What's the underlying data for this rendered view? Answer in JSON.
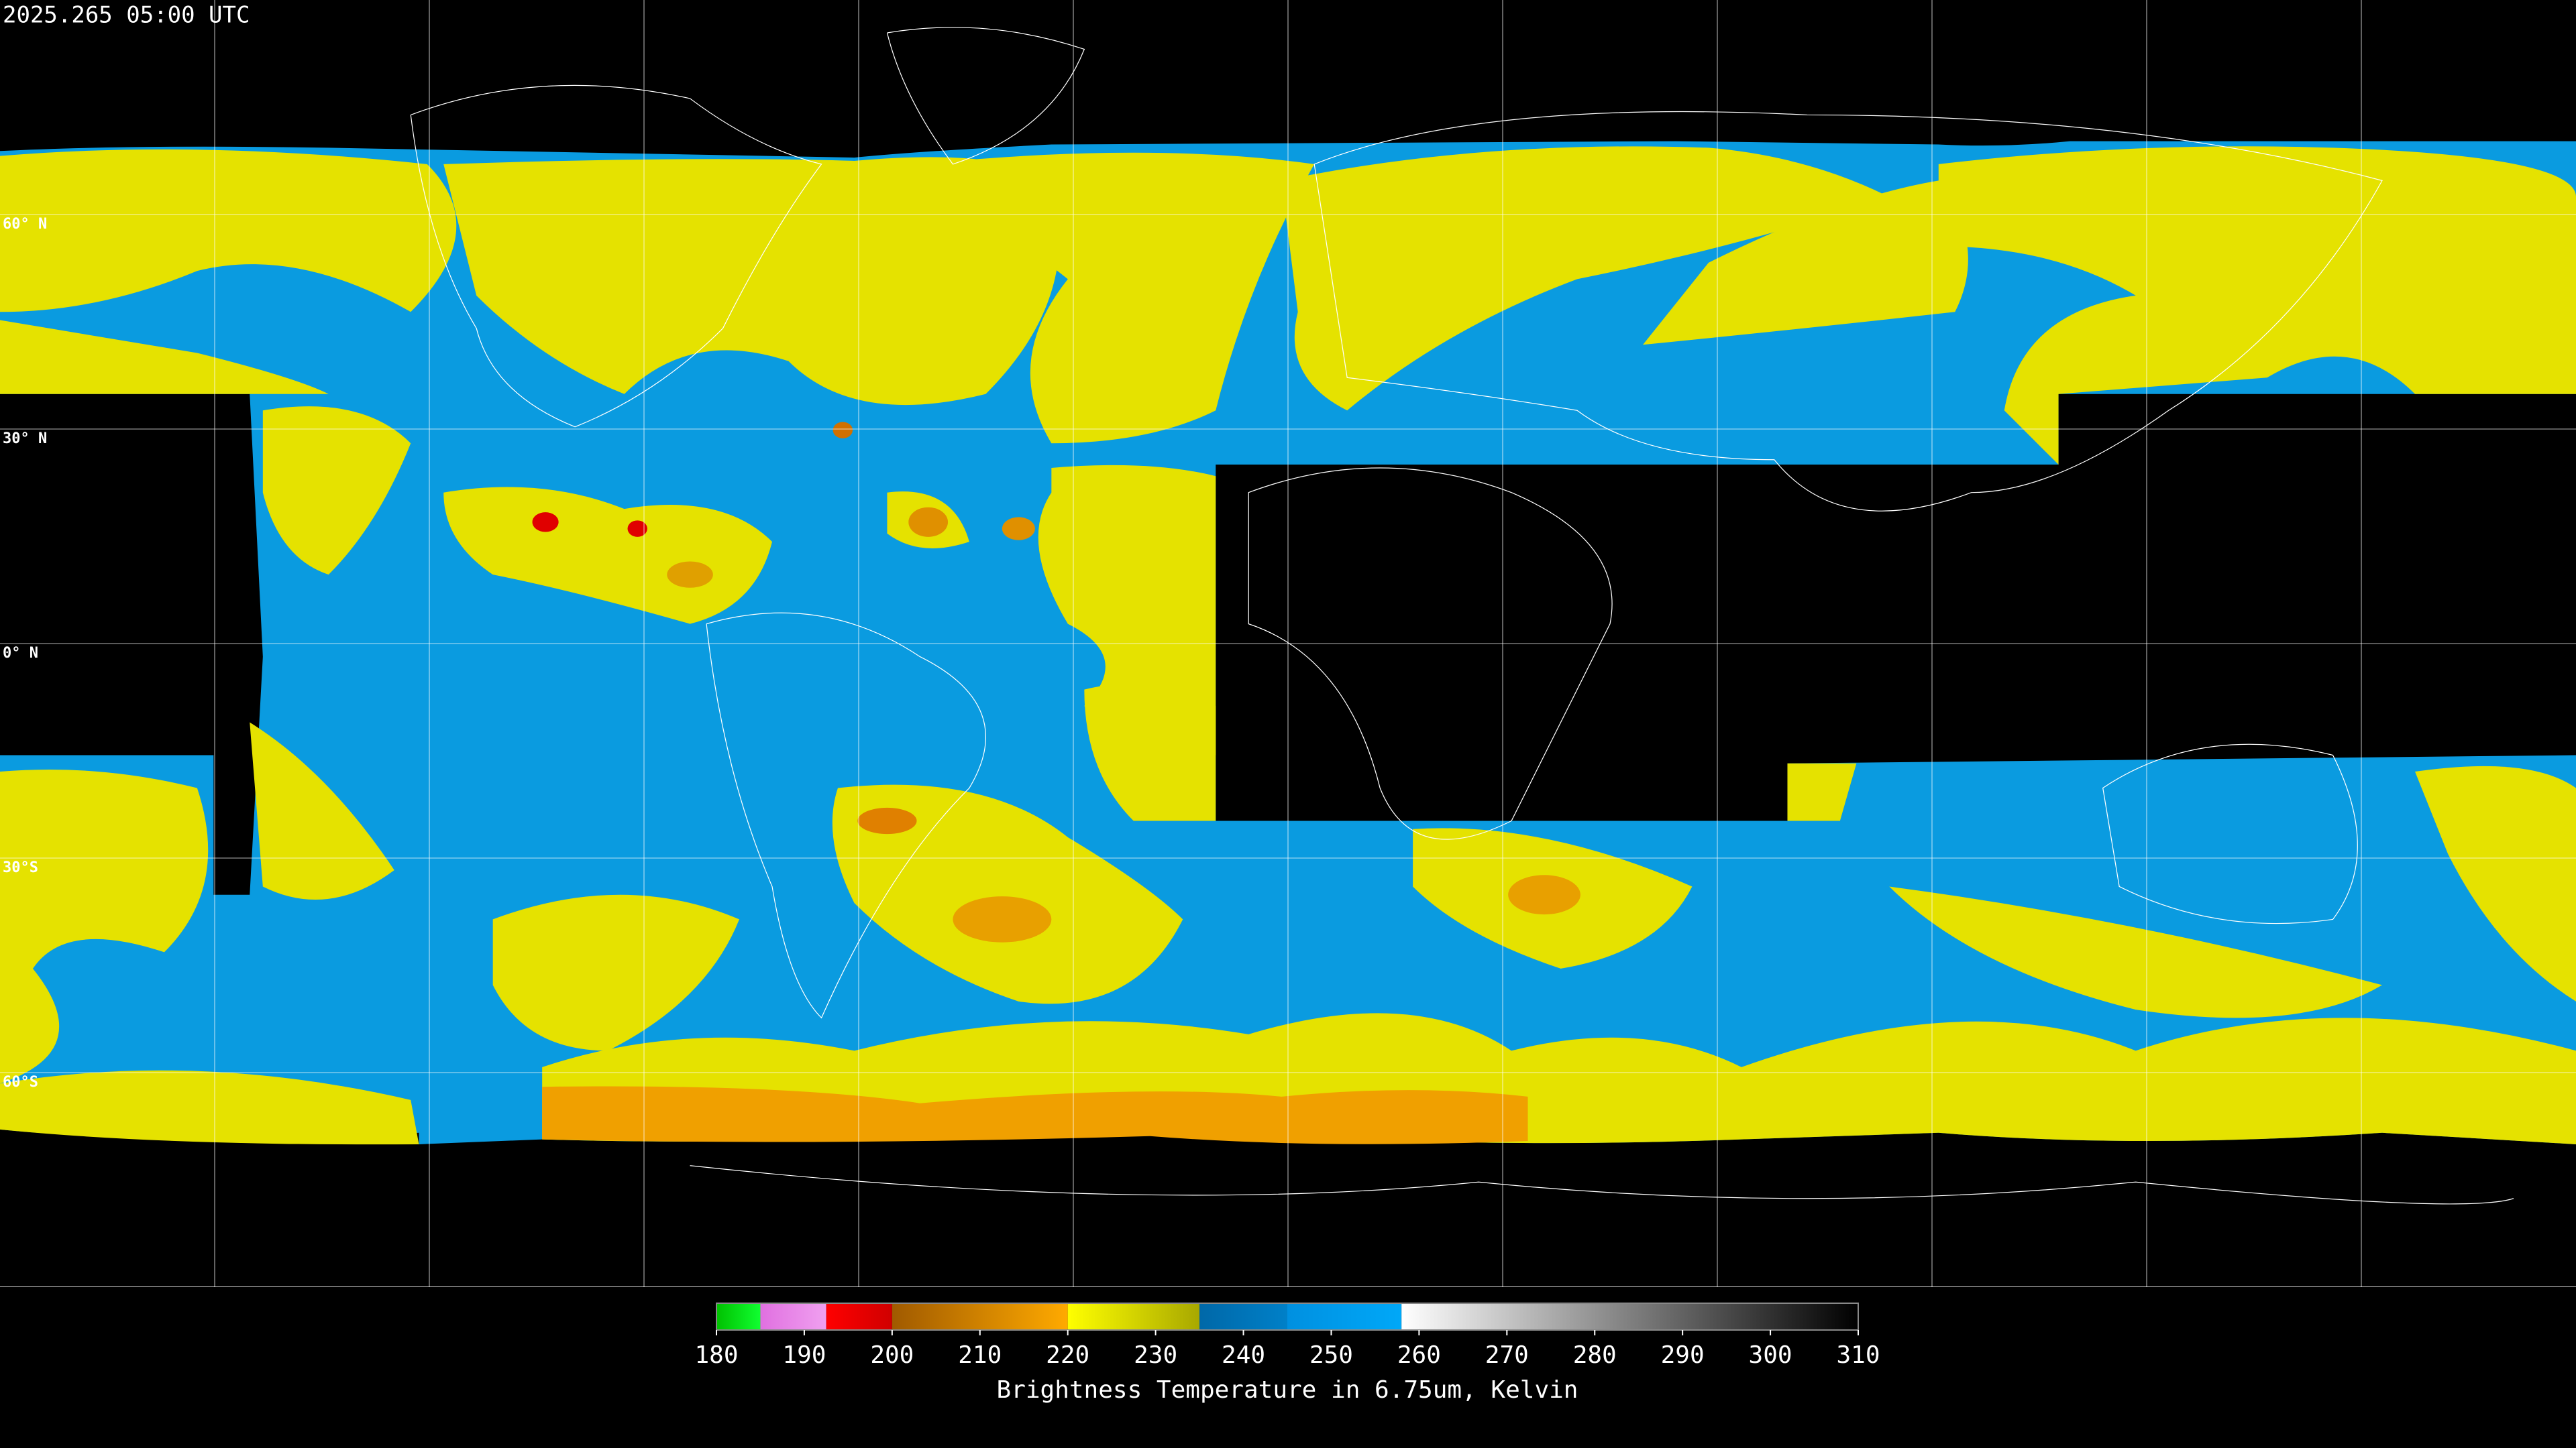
{
  "header": {
    "title": "2025.265 05:00 UTC"
  },
  "map": {
    "lat_labels": [
      "60° N",
      "30° N",
      "0° N",
      "30°S",
      "60°S"
    ]
  },
  "colorbar": {
    "range": [
      180,
      310
    ],
    "ticks": [
      180,
      190,
      200,
      210,
      220,
      230,
      240,
      250,
      260,
      270,
      280,
      290,
      300,
      310
    ],
    "segments": [
      {
        "from": 180,
        "to": 185,
        "colors": [
          "#00c000",
          "#10ff30"
        ]
      },
      {
        "from": 185,
        "to": 192.5,
        "colors": [
          "#e070e0",
          "#f0a0f0"
        ]
      },
      {
        "from": 192.5,
        "to": 200,
        "colors": [
          "#ff0000",
          "#d00000"
        ]
      },
      {
        "from": 200,
        "to": 220,
        "colors": [
          "#a05a00",
          "#ffaa00"
        ]
      },
      {
        "from": 220,
        "to": 235,
        "colors": [
          "#ffff00",
          "#a8a800"
        ]
      },
      {
        "from": 235,
        "to": 245,
        "colors": [
          "#0068a8",
          "#0080c8"
        ]
      },
      {
        "from": 245,
        "to": 258,
        "colors": [
          "#0090e0",
          "#00a8f8"
        ]
      },
      {
        "from": 258,
        "to": 310,
        "colors": [
          "#ffffff",
          "#000000"
        ]
      }
    ],
    "label": "Brightness Temperature in 6.75um, Kelvin"
  }
}
